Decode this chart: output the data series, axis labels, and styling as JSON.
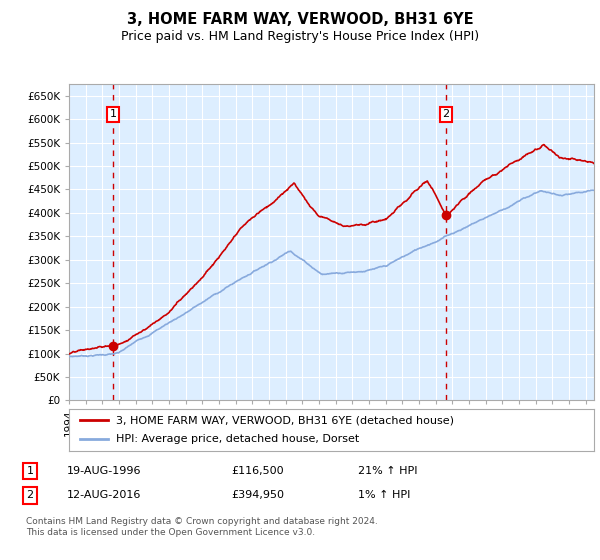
{
  "title": "3, HOME FARM WAY, VERWOOD, BH31 6YE",
  "subtitle": "Price paid vs. HM Land Registry's House Price Index (HPI)",
  "ylim": [
    0,
    675000
  ],
  "yticks": [
    0,
    50000,
    100000,
    150000,
    200000,
    250000,
    300000,
    350000,
    400000,
    450000,
    500000,
    550000,
    600000,
    650000
  ],
  "ytick_labels": [
    "£0",
    "£50K",
    "£100K",
    "£150K",
    "£200K",
    "£250K",
    "£300K",
    "£350K",
    "£400K",
    "£450K",
    "£500K",
    "£550K",
    "£600K",
    "£650K"
  ],
  "sale1_date": 1996.63,
  "sale1_price": 116500,
  "sale2_date": 2016.62,
  "sale2_price": 394950,
  "legend_line1": "3, HOME FARM WAY, VERWOOD, BH31 6YE (detached house)",
  "legend_line2": "HPI: Average price, detached house, Dorset",
  "table_row1": [
    "1",
    "19-AUG-1996",
    "£116,500",
    "21% ↑ HPI"
  ],
  "table_row2": [
    "2",
    "12-AUG-2016",
    "£394,950",
    "1% ↑ HPI"
  ],
  "footer": "Contains HM Land Registry data © Crown copyright and database right 2024.\nThis data is licensed under the Open Government Licence v3.0.",
  "line_color_red": "#cc0000",
  "line_color_blue": "#88aadd",
  "bg_color": "#ddeeff",
  "grid_color": "#ffffff",
  "dashed_color": "#cc0000",
  "xlim_left": 1994.0,
  "xlim_right": 2025.5
}
